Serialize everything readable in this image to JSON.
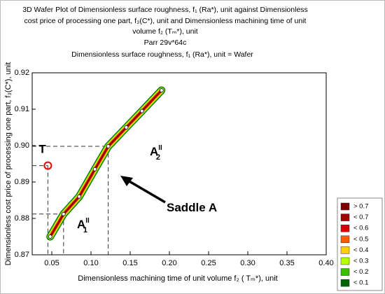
{
  "chart_data": {
    "type": "wafer",
    "title_lines": [
      "3D Wafer Plot of Dimensionless surface roughness, f₁ (Ra*), unit     against Dimensionless",
      "cost price  of processing one part, f₃(C*), unit     and Dimensionless machining time of unit",
      "volume f₂ (Tₘ*), unit",
      "Parr 29v*64c",
      "Dimensionless surface roughness, f₁ (Ra*), unit        = Wafer"
    ],
    "x_label": "Dimensionless machining  time of unit volume f₂ ( Tₘ*), unit",
    "y_label": "Dimensionless cost price  of processing one part, f₃(C*), unit",
    "x": [
      0.048,
      0.065,
      0.085,
      0.105,
      0.122,
      0.145,
      0.165,
      0.19
    ],
    "y": [
      0.875,
      0.8812,
      0.886,
      0.8935,
      0.8998,
      0.905,
      0.9095,
      0.9152
    ],
    "xlim": [
      0.025,
      0.4
    ],
    "ylim": [
      0.87,
      0.92
    ],
    "xticks": [
      0.05,
      {
        "value": 0.1,
        "label": "0.10"
      },
      0.15,
      {
        "value": 0.2,
        "label": "0.20"
      },
      0.25,
      {
        "value": 0.3,
        "label": "0.30"
      },
      0.35,
      {
        "value": 0.4,
        "label": "0.40"
      }
    ],
    "yticks": [
      0.87,
      0.88,
      0.89,
      {
        "value": 0.9,
        "label": "0.90"
      },
      0.91,
      {
        "value": 0.92,
        "label": "0.92"
      }
    ],
    "legend": [
      {
        "label": "> 0.7",
        "color": "#7a0000"
      },
      {
        "label": "< 0.7",
        "color": "#a30000"
      },
      {
        "label": "< 0.6",
        "color": "#d40000"
      },
      {
        "label": "< 0.5",
        "color": "#ff5a00"
      },
      {
        "label": "< 0.4",
        "color": "#ffd000"
      },
      {
        "label": "< 0.3",
        "color": "#b4ff00"
      },
      {
        "label": "< 0.2",
        "color": "#3cbf00"
      },
      {
        "label": "< 0.1",
        "color": "#006400"
      }
    ],
    "reference_points": [
      {
        "x": 0.045,
        "y": 0.8945
      },
      {
        "x": 0.122,
        "y": 0.8998
      },
      {
        "x": 0.065,
        "y": 0.8812
      }
    ],
    "annotations": [
      {
        "text": "T"
      },
      {
        "text": "A",
        "sup": "II",
        "sub": "2"
      },
      {
        "text": "A",
        "sup": "II",
        "sub": "1"
      },
      {
        "text": "Saddle A"
      }
    ]
  }
}
